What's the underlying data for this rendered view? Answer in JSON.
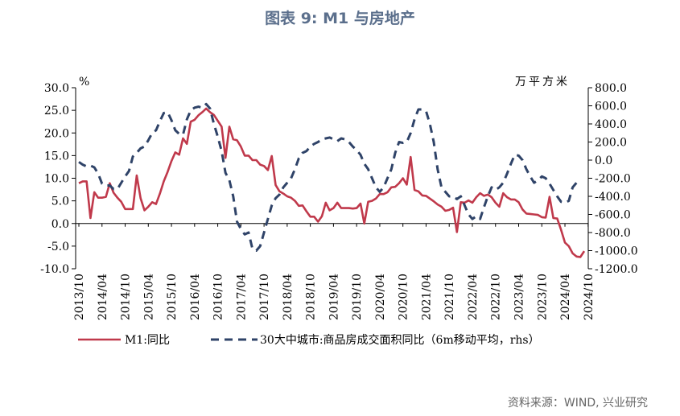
{
  "title": "图表 9: M1 与房地产",
  "source": "资料来源：WIND, 兴业研究",
  "chart_data": {
    "type": "line",
    "left_unit": "%",
    "right_unit": "万平方米",
    "y_left": {
      "min": -10,
      "max": 30,
      "step": 5,
      "ticks": [
        "-10.0",
        "-5.0",
        "0.0",
        "5.0",
        "10.0",
        "15.0",
        "20.0",
        "25.0",
        "30.0"
      ]
    },
    "y_right": {
      "min": -1200,
      "max": 800,
      "step": 200,
      "ticks": [
        "-1200.0",
        "-1000.0",
        "-800.0",
        "-600.0",
        "-400.0",
        "-200.0",
        "0.0",
        "200.0",
        "400.0",
        "600.0",
        "800.0"
      ]
    },
    "x_start": "2013/10",
    "x_labels": [
      "2013/10",
      "2014/04",
      "2014/10",
      "2015/04",
      "2015/10",
      "2016/04",
      "2016/10",
      "2017/04",
      "2017/10",
      "2018/04",
      "2018/10",
      "2019/04",
      "2019/10",
      "2020/04",
      "2020/10",
      "2021/04",
      "2021/10",
      "2022/04",
      "2022/10",
      "2023/04",
      "2023/10",
      "2024/04",
      "2024/10"
    ],
    "series": [
      {
        "name": "M1:同比",
        "axis": "left",
        "color": "#c0394b",
        "style": "solid",
        "values": [
          8.9,
          9.3,
          9.3,
          1.2,
          6.9,
          5.7,
          5.7,
          5.9,
          8.9,
          6.8,
          5.7,
          4.8,
          3.2,
          3.2,
          3.2,
          10.6,
          5.6,
          2.9,
          3.7,
          4.7,
          4.3,
          6.6,
          9.3,
          11.4,
          13.8,
          15.7,
          15.2,
          18.8,
          17.6,
          22.5,
          22.9,
          23.9,
          24.6,
          25.4,
          24.6,
          24.0,
          22.7,
          21.4,
          14.5,
          21.4,
          18.6,
          18.4,
          17.0,
          15.0,
          15.0,
          14.0,
          14.0,
          13.0,
          12.7,
          11.8,
          14.9,
          8.5,
          7.1,
          6.6,
          6.0,
          5.7,
          5.0,
          3.9,
          4.0,
          2.7,
          1.5,
          1.5,
          0.4,
          1.6,
          4.6,
          2.9,
          3.4,
          4.6,
          3.4,
          3.4,
          3.4,
          3.3,
          3.4,
          4.4,
          0.0,
          4.8,
          5.0,
          5.5,
          6.5,
          6.5,
          6.9,
          8.0,
          8.1,
          8.9,
          10.0,
          8.6,
          14.7,
          7.4,
          7.1,
          6.2,
          6.1,
          5.5,
          4.9,
          4.2,
          3.7,
          2.8,
          3.0,
          3.5,
          -1.9,
          4.7,
          4.6,
          5.1,
          4.6,
          5.8,
          6.7,
          6.1,
          6.4,
          5.8,
          4.6,
          3.7,
          6.7,
          5.8,
          5.3,
          5.3,
          4.7,
          3.1,
          2.2,
          2.1,
          2.0,
          1.9,
          1.4,
          1.3,
          5.9,
          1.2,
          1.1,
          -1.4,
          -4.2,
          -5.0,
          -6.6,
          -7.3,
          -7.4,
          -6.1
        ]
      },
      {
        "name": "30大中城市:商品房成交面积同比（6m移动平均，rhs）",
        "axis": "right",
        "color": "#2f4368",
        "style": "dashed",
        "values": [
          -20,
          -50,
          -70,
          -60,
          -80,
          -150,
          -260,
          -280,
          -280,
          -320,
          -320,
          -250,
          -180,
          -120,
          40,
          80,
          130,
          150,
          220,
          300,
          330,
          430,
          520,
          530,
          440,
          330,
          290,
          280,
          450,
          550,
          580,
          590,
          580,
          620,
          570,
          400,
          260,
          100,
          -140,
          -220,
          -400,
          -680,
          -760,
          -820,
          -800,
          -980,
          -1000,
          -950,
          -800,
          -650,
          -500,
          -420,
          -380,
          -300,
          -250,
          -200,
          -100,
          20,
          80,
          100,
          150,
          180,
          200,
          230,
          240,
          250,
          230,
          210,
          240,
          230,
          200,
          150,
          110,
          60,
          -40,
          -100,
          -200,
          -300,
          -350,
          -300,
          -200,
          -100,
          80,
          200,
          190,
          200,
          300,
          450,
          560,
          560,
          540,
          400,
          200,
          -100,
          -300,
          -350,
          -400,
          -400,
          -430,
          -400,
          -500,
          -600,
          -650,
          -620,
          -650,
          -520,
          -400,
          -300,
          -330,
          -300,
          -250,
          -150,
          -40,
          60,
          50,
          0,
          -100,
          -180,
          -250,
          -220,
          -180,
          -200,
          -260,
          -330,
          -400,
          -460,
          -470,
          -450,
          -300,
          -250
        ]
      }
    ]
  }
}
